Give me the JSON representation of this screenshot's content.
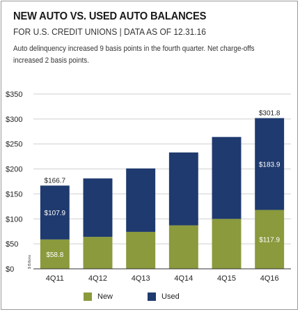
{
  "header": {
    "title": "NEW AUTO VS. USED AUTO BALANCES",
    "subtitle": "FOR U.S. CREDIT UNIONS | DATA AS OF 12.31.16",
    "note": "Auto delinquency increased 9 basis points in the fourth quarter. Net charge-offs increased 2 basis points."
  },
  "colors": {
    "new": "#8a9a3c",
    "used": "#1f3a6e",
    "grid": "#cfcfcf",
    "axis": "#333333"
  },
  "chart_data": {
    "type": "bar",
    "stacked": true,
    "categories": [
      "4Q11",
      "4Q12",
      "4Q13",
      "4Q14",
      "4Q15",
      "4Q16"
    ],
    "series": [
      {
        "name": "New",
        "values": [
          58.8,
          64,
          74,
          87,
          100,
          117.9
        ]
      },
      {
        "name": "Used",
        "values": [
          107.9,
          117,
          127,
          146,
          164,
          183.9
        ]
      }
    ],
    "totals": [
      166.7,
      181,
      201,
      233,
      264,
      301.8
    ],
    "data_labels": {
      "new": [
        "$58.8",
        "",
        "",
        "",
        "",
        "$117.9"
      ],
      "used": [
        "$107.9",
        "",
        "",
        "",
        "",
        "$183.9"
      ],
      "total": [
        "$166.7",
        "",
        "",
        "",
        "",
        "$301.8"
      ]
    },
    "y_ticks": [
      0,
      50,
      100,
      150,
      200,
      250,
      300,
      350
    ],
    "y_tick_labels": [
      "$0",
      "$50",
      "$100",
      "$150",
      "$200",
      "$250",
      "$300",
      "$350"
    ],
    "ylabel": "$ Billions",
    "ylim": [
      0,
      350
    ],
    "grid": true,
    "legend_position": "bottom"
  }
}
